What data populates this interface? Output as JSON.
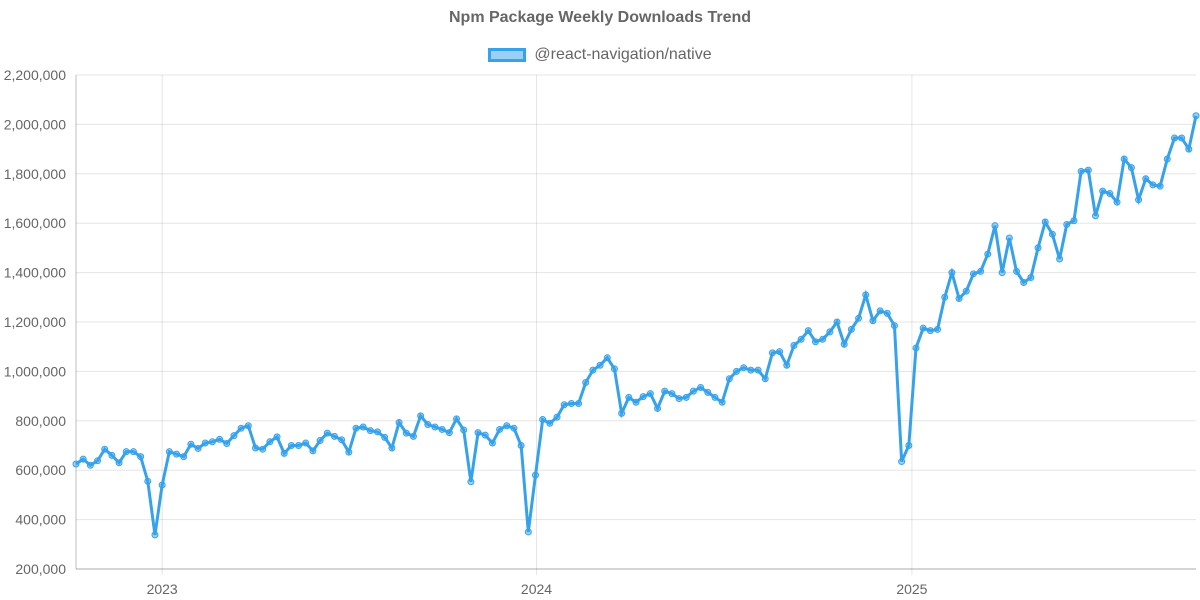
{
  "chart_data": {
    "type": "line",
    "title": "Npm Package Weekly Downloads Trend",
    "xlabel": "",
    "ylabel": "",
    "x_axis": {
      "ticks": [
        "2023",
        "2024",
        "2025"
      ]
    },
    "y_axis": {
      "min": 200000,
      "max": 2200000,
      "step": 200000,
      "tick_labels": [
        "200,000",
        "400,000",
        "600,000",
        "800,000",
        "1,000,000",
        "1,200,000",
        "1,400,000",
        "1,600,000",
        "1,800,000",
        "2,000,000",
        "2,200,000"
      ]
    },
    "grid": true,
    "legend_position": "top",
    "series": [
      {
        "name": "@react-navigation/native",
        "color": "#36a2eb",
        "fill": "rgba(54,162,235,0.5)",
        "start_date": "2022-10-09",
        "interval_days": 7,
        "values": [
          625000,
          645000,
          620000,
          638000,
          685000,
          660000,
          630000,
          675000,
          675000,
          655000,
          555000,
          338000,
          540000,
          675000,
          665000,
          655000,
          705000,
          688000,
          710000,
          715000,
          725000,
          708000,
          740000,
          770000,
          780000,
          690000,
          685000,
          715000,
          735000,
          668000,
          700000,
          700000,
          710000,
          678000,
          720000,
          750000,
          737000,
          723000,
          673000,
          770000,
          775000,
          760000,
          755000,
          733000,
          690000,
          793000,
          750000,
          737000,
          820000,
          785000,
          775000,
          765000,
          752000,
          808000,
          763000,
          553000,
          752000,
          742000,
          710000,
          765000,
          780000,
          770000,
          700000,
          350000,
          580000,
          805000,
          790000,
          815000,
          865000,
          870000,
          870000,
          955000,
          1005000,
          1025000,
          1055000,
          1010000,
          830000,
          895000,
          875000,
          898000,
          910000,
          850000,
          920000,
          910000,
          890000,
          895000,
          920000,
          935000,
          915000,
          895000,
          875000,
          970000,
          1000000,
          1015000,
          1005000,
          1005000,
          970000,
          1075000,
          1080000,
          1025000,
          1105000,
          1130000,
          1165000,
          1120000,
          1130000,
          1160000,
          1200000,
          1110000,
          1170000,
          1215000,
          1310000,
          1205000,
          1245000,
          1235000,
          1185000,
          635000,
          700000,
          1095000,
          1175000,
          1165000,
          1170000,
          1300000,
          1400000,
          1295000,
          1325000,
          1395000,
          1405000,
          1475000,
          1590000,
          1400000,
          1540000,
          1405000,
          1360000,
          1380000,
          1500000,
          1605000,
          1555000,
          1455000,
          1595000,
          1610000,
          1810000,
          1815000,
          1630000,
          1730000,
          1720000,
          1685000,
          1860000,
          1825000,
          1695000,
          1780000,
          1755000,
          1750000,
          1860000,
          1945000,
          1945000,
          1900000,
          2035000
        ]
      }
    ]
  }
}
